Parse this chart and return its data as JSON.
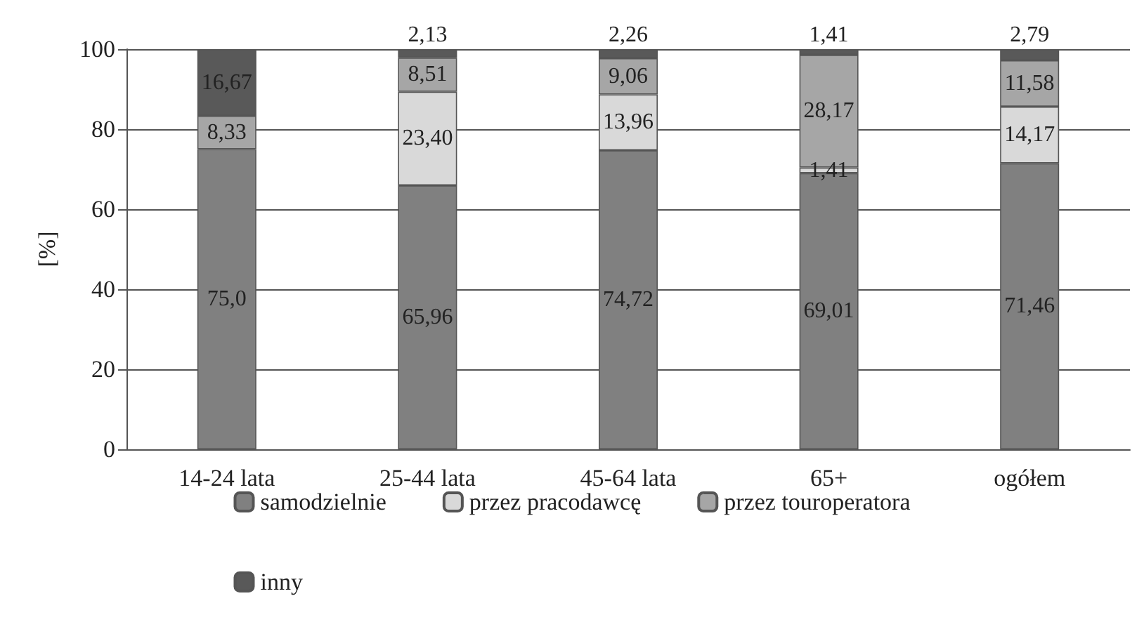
{
  "chart_data": {
    "type": "bar",
    "stacked": true,
    "ylabel": "[%]",
    "categories": [
      "14-24 lata",
      "25-44 lata",
      "45-64 lata",
      "65+",
      "ogółem"
    ],
    "ylim": [
      0,
      100
    ],
    "yticks": [
      0,
      20,
      40,
      60,
      80,
      100
    ],
    "grid": "y",
    "legend": "bottom",
    "series": [
      {
        "name": "samodzielnie",
        "color": "#808080",
        "values": [
          75.0,
          65.96,
          74.72,
          69.01,
          71.46
        ],
        "value_labels": [
          "75,0",
          "65,96",
          "74,72",
          "69,01",
          "71,46"
        ]
      },
      {
        "name": "przez pracodawcę",
        "color": "#d9d9d9",
        "values": [
          null,
          23.4,
          13.96,
          1.41,
          14.17
        ],
        "value_labels": [
          null,
          "23,40",
          "13,96",
          "1,41",
          "14,17"
        ]
      },
      {
        "name": "przez touroperatora",
        "color": "#a6a6a6",
        "values": [
          8.33,
          8.51,
          9.06,
          28.17,
          11.58
        ],
        "value_labels": [
          "8,33",
          "8,51",
          "9,06",
          "28,17",
          "11,58"
        ]
      },
      {
        "name": "inny",
        "color": "#595959",
        "values": [
          16.67,
          2.13,
          2.26,
          1.41,
          2.79
        ],
        "value_labels": [
          "16,67",
          "2,13",
          "2,26",
          "1,41",
          "2,79"
        ]
      }
    ]
  }
}
